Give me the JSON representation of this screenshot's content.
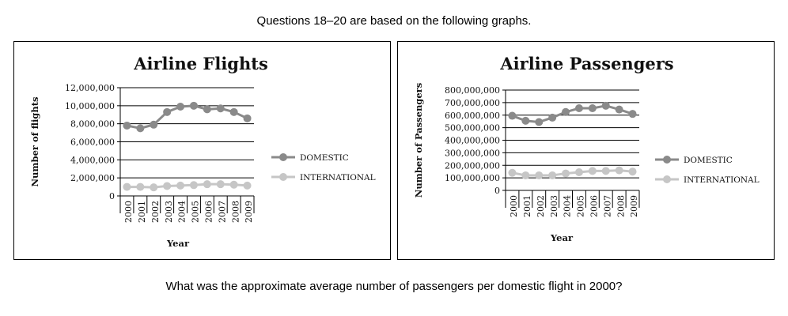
{
  "intro": "Questions 18–20 are based on the following graphs.",
  "question": "What was the approximate average number of passengers per domestic flight in 2000?",
  "colors": {
    "domestic": "#8a8a8a",
    "international": "#c6c6c6"
  },
  "chart_data": [
    {
      "type": "line",
      "title": "Airline Flights",
      "xlabel": "Year",
      "ylabel": "Number of flights",
      "categories": [
        "2000",
        "2001",
        "2002",
        "2003",
        "2004",
        "2005",
        "2006",
        "2007",
        "2008",
        "2009"
      ],
      "yticks": [
        "0",
        "2,000,000",
        "4,000,000",
        "6,000,000",
        "8,000,000",
        "10,000,000",
        "12,000,000"
      ],
      "ylim": [
        0,
        12000000
      ],
      "legend_position": "right",
      "grid": true,
      "series": [
        {
          "name": "DOMESTIC",
          "values": [
            7800000,
            7500000,
            7900000,
            9300000,
            9900000,
            10000000,
            9600000,
            9700000,
            9300000,
            8600000
          ]
        },
        {
          "name": "INTERNATIONAL",
          "values": [
            1000000,
            1000000,
            950000,
            1100000,
            1150000,
            1200000,
            1300000,
            1300000,
            1250000,
            1150000
          ]
        }
      ]
    },
    {
      "type": "line",
      "title": "Airline Passengers",
      "xlabel": "Year",
      "ylabel": "Number of Passengers",
      "categories": [
        "2000",
        "2001",
        "2002",
        "2003",
        "2004",
        "2005",
        "2006",
        "2007",
        "2008",
        "2009"
      ],
      "yticks": [
        "0",
        "100,000,000",
        "200,000,000",
        "300,000,000",
        "400,000,000",
        "500,000,000",
        "600,000,000",
        "700,000,000",
        "800,000,000"
      ],
      "ylim": [
        0,
        800000000
      ],
      "legend_position": "right",
      "grid": true,
      "series": [
        {
          "name": "DOMESTIC",
          "values": [
            595000000,
            555000000,
            545000000,
            580000000,
            625000000,
            655000000,
            655000000,
            675000000,
            645000000,
            610000000
          ]
        },
        {
          "name": "INTERNATIONAL",
          "values": [
            140000000,
            120000000,
            120000000,
            120000000,
            135000000,
            145000000,
            155000000,
            155000000,
            160000000,
            150000000
          ]
        }
      ]
    }
  ]
}
